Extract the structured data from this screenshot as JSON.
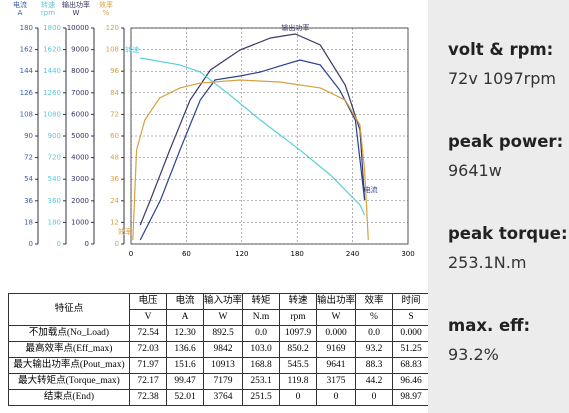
{
  "chart_data": {
    "type": "line",
    "xlim": [
      0,
      300
    ],
    "xticks": [
      0,
      60,
      120,
      180,
      240,
      300
    ],
    "grid": true,
    "yaxes": [
      {
        "name": "电流",
        "unit": "A",
        "color": "#3a5fb0",
        "ylim": [
          0,
          180
        ],
        "yticks": [
          0,
          18,
          36,
          54,
          72,
          90,
          108,
          126,
          144,
          162,
          180
        ]
      },
      {
        "name": "转速",
        "unit": "rpm",
        "color": "#5cc8d8",
        "ylim": [
          0,
          1800
        ],
        "yticks": [
          0,
          180,
          360,
          540,
          720,
          900,
          1080,
          1260,
          1440,
          1620,
          1800
        ]
      },
      {
        "name": "输出功率",
        "unit": "W",
        "color": "#333366",
        "ylim": [
          0,
          10000
        ],
        "yticks": [
          0,
          1000,
          2000,
          3000,
          4000,
          5000,
          6000,
          7000,
          8000,
          9000,
          10000
        ]
      },
      {
        "name": "效率",
        "unit": "%",
        "color": "#d9a040",
        "ylim": [
          0,
          120
        ],
        "yticks": [
          0,
          12,
          24,
          36,
          48,
          60,
          72,
          84,
          96,
          108,
          120
        ]
      }
    ],
    "series": [
      {
        "name": "输出功率",
        "color": "#3a3a6a",
        "axis": 2,
        "x": [
          10,
          21,
          42,
          64,
          86,
          118,
          151,
          178,
          205,
          232,
          248,
          253
        ],
        "values": [
          880,
          2037,
          4352,
          6667,
          8056,
          8981,
          9537,
          9722,
          9213,
          7361,
          5278,
          2037
        ]
      },
      {
        "name": "电流",
        "color": "#2a3f8f",
        "axis": 0,
        "x": [
          10,
          32,
          53,
          75,
          91,
          118,
          140,
          161,
          183,
          205,
          226,
          243,
          253
        ],
        "values": [
          3.3,
          36.7,
          78.3,
          120,
          136.7,
          140,
          143.3,
          148.3,
          153.3,
          149.2,
          128.3,
          103.3,
          36.7
        ]
      },
      {
        "name": "转速",
        "color": "#55d0dd",
        "axis": 1,
        "x": [
          10,
          53,
          75,
          107,
          140,
          183,
          216,
          248,
          253
        ],
        "values": [
          1550,
          1492,
          1433,
          1242,
          1033,
          783,
          575,
          325,
          242
        ]
      },
      {
        "name": "效率",
        "color": "#d9a040",
        "axis": 3,
        "x": [
          2,
          6,
          15,
          31,
          53,
          75,
          118,
          161,
          205,
          232,
          248,
          253,
          257
        ],
        "values": [
          2.2,
          52.2,
          68.9,
          81.1,
          86.7,
          89.4,
          91.1,
          90,
          86.7,
          80,
          66.1,
          41.1,
          2.2
        ]
      }
    ]
  },
  "table": {
    "corner": "特征点",
    "columns": [
      "电压",
      "电流",
      "输入功率",
      "转矩",
      "转速",
      "输出功率",
      "效率",
      "时间"
    ],
    "units": [
      "V",
      "A",
      "W",
      "N.m",
      "rpm",
      "W",
      "%",
      "S"
    ],
    "rows": [
      [
        "不加载点(No_Load)",
        "72.54",
        "12.30",
        "892.5",
        "0.0",
        "1097.9",
        "0.000",
        "0.0",
        "0.000"
      ],
      [
        "最高效率点(Eff_max)",
        "72.03",
        "136.6",
        "9842",
        "103.0",
        "850.2",
        "9169",
        "93.2",
        "51.25"
      ],
      [
        "最大输出功率点(Pout_max)",
        "71.97",
        "151.6",
        "10913",
        "168.8",
        "545.5",
        "9641",
        "88.3",
        "68.83"
      ],
      [
        "最大转矩点(Torque_max)",
        "72.17",
        "99.47",
        "7179",
        "253.1",
        "119.8",
        "3175",
        "44.2",
        "96.46"
      ],
      [
        "结束点(End)",
        "72.38",
        "52.01",
        "3764",
        "251.5",
        "0",
        "0",
        "0",
        "98.97"
      ]
    ]
  },
  "panel": [
    {
      "label": "volt & rpm:",
      "value": "72v 1097rpm"
    },
    {
      "label": "peak power:",
      "value": "9641w"
    },
    {
      "label": "peak torque:",
      "value": "253.1N.m"
    },
    {
      "label": "max. eff:",
      "value": "93.2%"
    }
  ]
}
